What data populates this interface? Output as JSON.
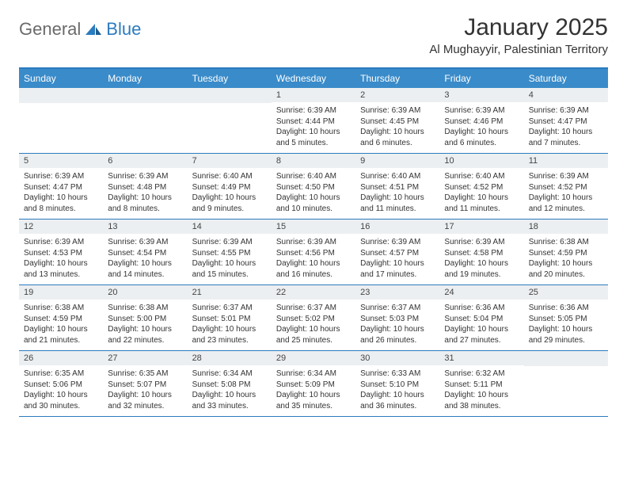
{
  "logo": {
    "general": "General",
    "blue": "Blue"
  },
  "title": "January 2025",
  "location": "Al Mughayyir, Palestinian Territory",
  "colors": {
    "header_bg": "#3a8bc9",
    "border": "#2b7bbf",
    "daynum_bg": "#eceff1",
    "text": "#333333",
    "logo_gray": "#6a6a6a",
    "logo_blue": "#2b7bbf"
  },
  "day_headers": [
    "Sunday",
    "Monday",
    "Tuesday",
    "Wednesday",
    "Thursday",
    "Friday",
    "Saturday"
  ],
  "weeks": [
    [
      {
        "blank": true
      },
      {
        "blank": true
      },
      {
        "blank": true
      },
      {
        "n": "1",
        "sunrise": "6:39 AM",
        "sunset": "4:44 PM",
        "daylight": "10 hours and 5 minutes."
      },
      {
        "n": "2",
        "sunrise": "6:39 AM",
        "sunset": "4:45 PM",
        "daylight": "10 hours and 6 minutes."
      },
      {
        "n": "3",
        "sunrise": "6:39 AM",
        "sunset": "4:46 PM",
        "daylight": "10 hours and 6 minutes."
      },
      {
        "n": "4",
        "sunrise": "6:39 AM",
        "sunset": "4:47 PM",
        "daylight": "10 hours and 7 minutes."
      }
    ],
    [
      {
        "n": "5",
        "sunrise": "6:39 AM",
        "sunset": "4:47 PM",
        "daylight": "10 hours and 8 minutes."
      },
      {
        "n": "6",
        "sunrise": "6:39 AM",
        "sunset": "4:48 PM",
        "daylight": "10 hours and 8 minutes."
      },
      {
        "n": "7",
        "sunrise": "6:40 AM",
        "sunset": "4:49 PM",
        "daylight": "10 hours and 9 minutes."
      },
      {
        "n": "8",
        "sunrise": "6:40 AM",
        "sunset": "4:50 PM",
        "daylight": "10 hours and 10 minutes."
      },
      {
        "n": "9",
        "sunrise": "6:40 AM",
        "sunset": "4:51 PM",
        "daylight": "10 hours and 11 minutes."
      },
      {
        "n": "10",
        "sunrise": "6:40 AM",
        "sunset": "4:52 PM",
        "daylight": "10 hours and 11 minutes."
      },
      {
        "n": "11",
        "sunrise": "6:39 AM",
        "sunset": "4:52 PM",
        "daylight": "10 hours and 12 minutes."
      }
    ],
    [
      {
        "n": "12",
        "sunrise": "6:39 AM",
        "sunset": "4:53 PM",
        "daylight": "10 hours and 13 minutes."
      },
      {
        "n": "13",
        "sunrise": "6:39 AM",
        "sunset": "4:54 PM",
        "daylight": "10 hours and 14 minutes."
      },
      {
        "n": "14",
        "sunrise": "6:39 AM",
        "sunset": "4:55 PM",
        "daylight": "10 hours and 15 minutes."
      },
      {
        "n": "15",
        "sunrise": "6:39 AM",
        "sunset": "4:56 PM",
        "daylight": "10 hours and 16 minutes."
      },
      {
        "n": "16",
        "sunrise": "6:39 AM",
        "sunset": "4:57 PM",
        "daylight": "10 hours and 17 minutes."
      },
      {
        "n": "17",
        "sunrise": "6:39 AM",
        "sunset": "4:58 PM",
        "daylight": "10 hours and 19 minutes."
      },
      {
        "n": "18",
        "sunrise": "6:38 AM",
        "sunset": "4:59 PM",
        "daylight": "10 hours and 20 minutes."
      }
    ],
    [
      {
        "n": "19",
        "sunrise": "6:38 AM",
        "sunset": "4:59 PM",
        "daylight": "10 hours and 21 minutes."
      },
      {
        "n": "20",
        "sunrise": "6:38 AM",
        "sunset": "5:00 PM",
        "daylight": "10 hours and 22 minutes."
      },
      {
        "n": "21",
        "sunrise": "6:37 AM",
        "sunset": "5:01 PM",
        "daylight": "10 hours and 23 minutes."
      },
      {
        "n": "22",
        "sunrise": "6:37 AM",
        "sunset": "5:02 PM",
        "daylight": "10 hours and 25 minutes."
      },
      {
        "n": "23",
        "sunrise": "6:37 AM",
        "sunset": "5:03 PM",
        "daylight": "10 hours and 26 minutes."
      },
      {
        "n": "24",
        "sunrise": "6:36 AM",
        "sunset": "5:04 PM",
        "daylight": "10 hours and 27 minutes."
      },
      {
        "n": "25",
        "sunrise": "6:36 AM",
        "sunset": "5:05 PM",
        "daylight": "10 hours and 29 minutes."
      }
    ],
    [
      {
        "n": "26",
        "sunrise": "6:35 AM",
        "sunset": "5:06 PM",
        "daylight": "10 hours and 30 minutes."
      },
      {
        "n": "27",
        "sunrise": "6:35 AM",
        "sunset": "5:07 PM",
        "daylight": "10 hours and 32 minutes."
      },
      {
        "n": "28",
        "sunrise": "6:34 AM",
        "sunset": "5:08 PM",
        "daylight": "10 hours and 33 minutes."
      },
      {
        "n": "29",
        "sunrise": "6:34 AM",
        "sunset": "5:09 PM",
        "daylight": "10 hours and 35 minutes."
      },
      {
        "n": "30",
        "sunrise": "6:33 AM",
        "sunset": "5:10 PM",
        "daylight": "10 hours and 36 minutes."
      },
      {
        "n": "31",
        "sunrise": "6:32 AM",
        "sunset": "5:11 PM",
        "daylight": "10 hours and 38 minutes."
      },
      {
        "blank": true
      }
    ]
  ],
  "labels": {
    "sunrise": "Sunrise:",
    "sunset": "Sunset:",
    "daylight": "Daylight:"
  }
}
